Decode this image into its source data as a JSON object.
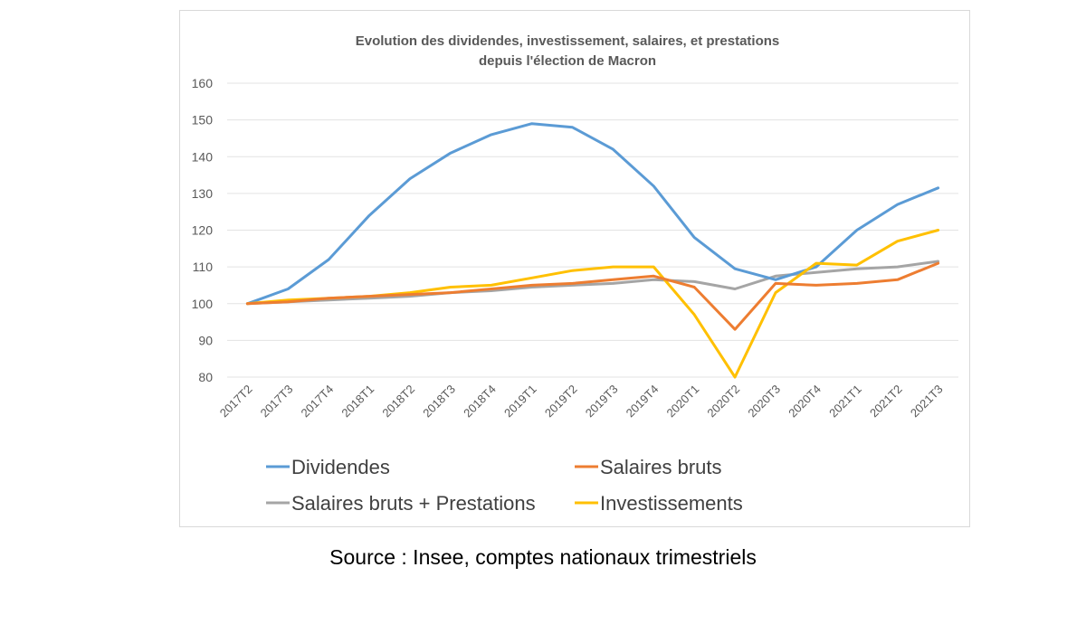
{
  "chart_data": {
    "type": "line",
    "title": [
      "Evolution des dividendes, investissement, salaires, et prestations",
      "depuis l'élection de Macron"
    ],
    "categories": [
      "2017T2",
      "2017T3",
      "2017T4",
      "2018T1",
      "2018T2",
      "2018T3",
      "2018T4",
      "2019T1",
      "2019T2",
      "2019T3",
      "2019T4",
      "2020T1",
      "2020T2",
      "2020T3",
      "2020T4",
      "2021T1",
      "2021T2",
      "2021T3"
    ],
    "ylim": [
      80,
      160
    ],
    "yticks": [
      80,
      90,
      100,
      110,
      120,
      130,
      140,
      150,
      160
    ],
    "grid": true,
    "legend_position": "bottom",
    "series": [
      {
        "name": "Dividendes",
        "color": "#5b9bd5",
        "values": [
          100,
          104,
          112,
          124,
          134,
          141,
          146,
          149,
          148,
          142,
          132,
          118,
          109.5,
          106.5,
          110,
          120,
          127,
          131.5
        ]
      },
      {
        "name": "Salaires bruts",
        "color": "#ed7d31",
        "values": [
          100,
          100.5,
          101.5,
          102,
          102.5,
          103,
          104,
          105,
          105.5,
          106.5,
          107.5,
          104.5,
          93,
          105.5,
          105,
          105.5,
          106.5,
          111
        ]
      },
      {
        "name": "Salaires bruts + Prestations",
        "color": "#a5a5a5",
        "values": [
          100,
          100.5,
          101,
          101.5,
          102,
          103,
          103.5,
          104.5,
          105,
          105.5,
          106.5,
          106,
          104,
          107.5,
          108.5,
          109.5,
          110,
          111.5
        ]
      },
      {
        "name": "Investissements",
        "color": "#ffc000",
        "values": [
          100,
          101,
          101.5,
          102,
          103,
          104.5,
          105,
          107,
          109,
          110,
          110,
          97,
          80,
          103,
          111,
          110.5,
          117,
          120
        ]
      }
    ]
  },
  "source_note": "Source : Insee, comptes nationaux trimestriels"
}
